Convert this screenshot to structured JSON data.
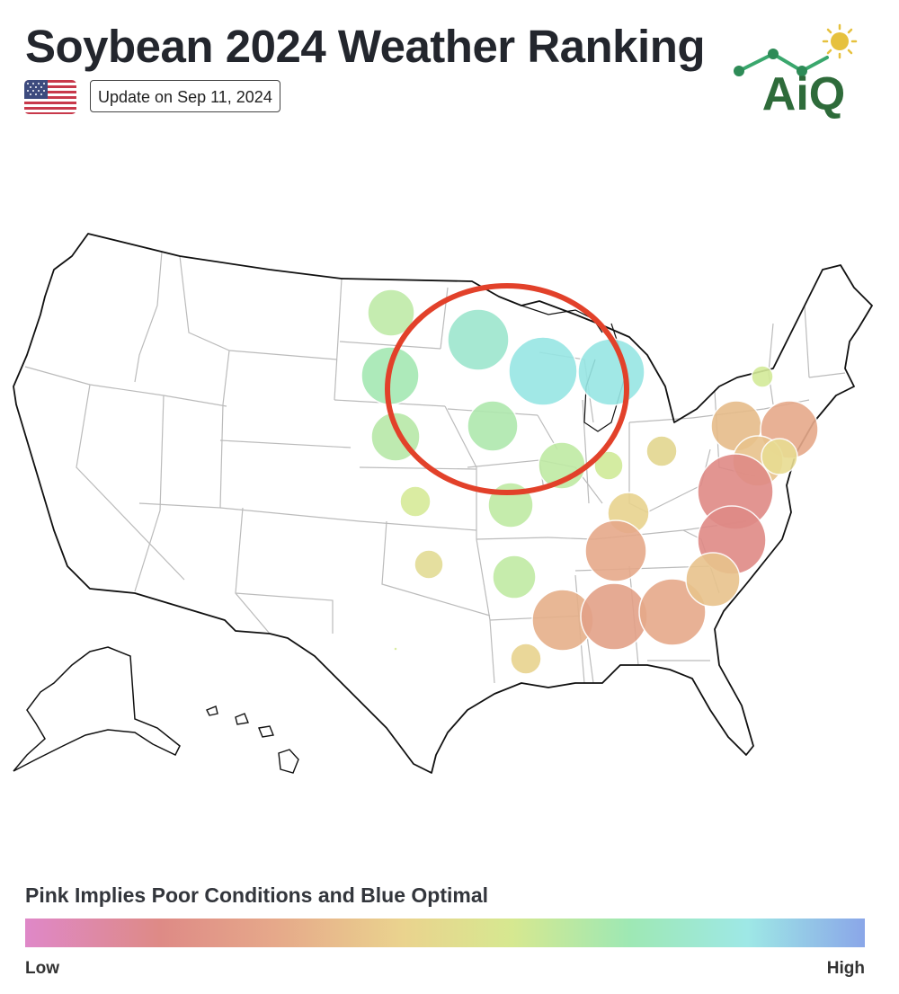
{
  "header": {
    "title": "Soybean 2024 Weather Ranking",
    "update_label": "Update on Sep 11, 2024",
    "flag_icon": "us-flag-icon"
  },
  "logo": {
    "text": "AiQ",
    "text_color": "#2e6b3a",
    "line_color": "#3aa76d",
    "sun_color": "#e6c13e"
  },
  "map": {
    "highlight_color": "#e2412a",
    "outline_color": "#111111",
    "state_border_color": "#bbbbbb"
  },
  "legend": {
    "title": "Pink Implies Poor Conditions and Blue Optimal",
    "low_label": "Low",
    "high_label": "High",
    "gradient": [
      "#df88c8",
      "#de8a86",
      "#e6a98a",
      "#ead38e",
      "#d6e890",
      "#9ee8b4",
      "#9ee8e6",
      "#8aa6e8"
    ]
  }
}
